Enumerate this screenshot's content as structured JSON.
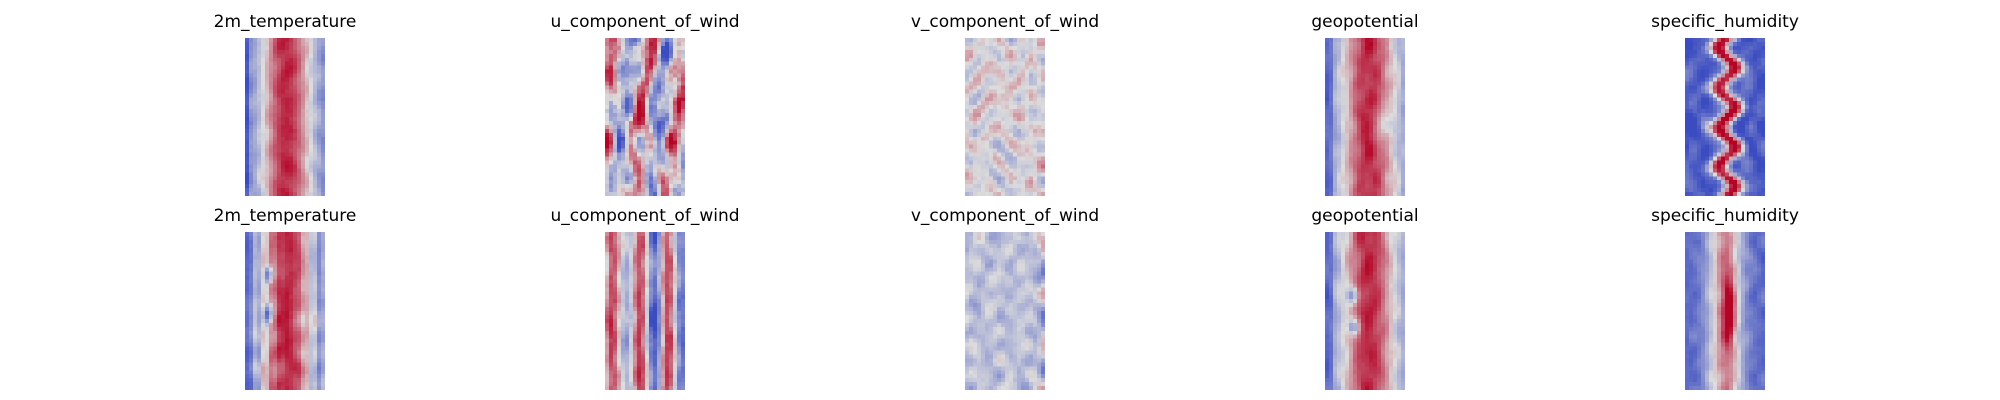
{
  "chart_data": {
    "type": "heatmap",
    "colormap": "coolwarm",
    "colormap_colors": {
      "low": "#3b4cc0",
      "mid": "#dddddd",
      "high": "#b40426"
    },
    "axes_visible": false,
    "rows": [
      {
        "panels": [
          {
            "title": "2m_temperature",
            "field": "2m_temperature"
          },
          {
            "title": "u_component_of_wind",
            "field": "u_component_of_wind"
          },
          {
            "title": "v_component_of_wind",
            "field": "v_component_of_wind"
          },
          {
            "title": "geopotential",
            "field": "geopotential"
          },
          {
            "title": "specific_humidity",
            "field": "specific_humidity"
          }
        ]
      },
      {
        "panels": [
          {
            "title": "2m_temperature",
            "field": "2m_temperature"
          },
          {
            "title": "u_component_of_wind",
            "field": "u_component_of_wind"
          },
          {
            "title": "v_component_of_wind",
            "field": "v_component_of_wind"
          },
          {
            "title": "geopotential",
            "field": "geopotential"
          },
          {
            "title": "specific_humidity",
            "field": "specific_humidity"
          }
        ]
      }
    ]
  }
}
